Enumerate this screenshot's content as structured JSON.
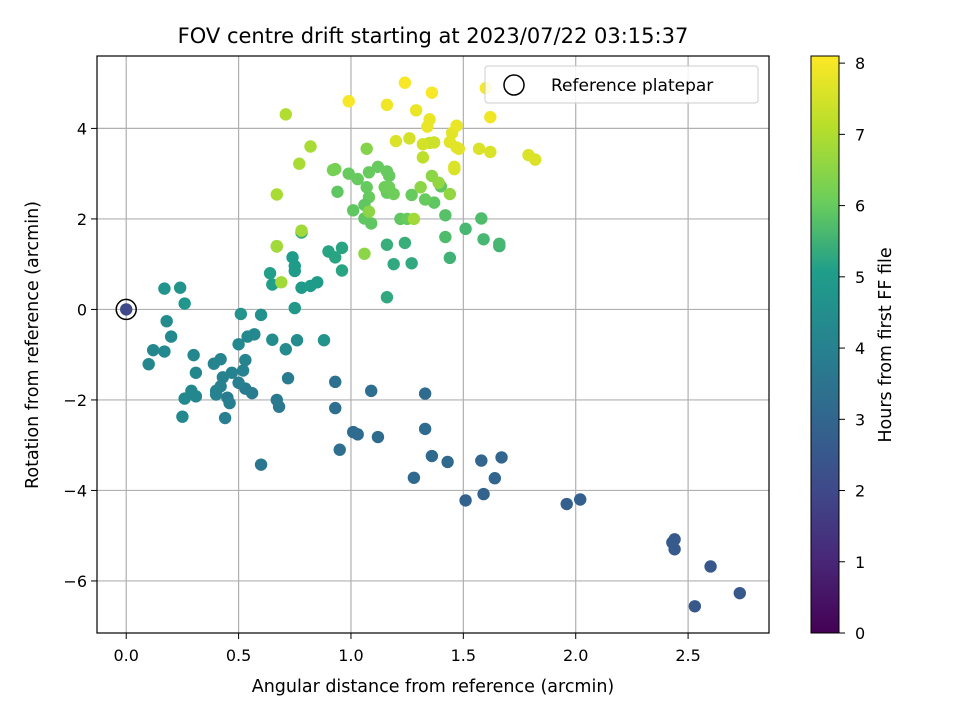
{
  "chart_data": {
    "type": "scatter",
    "title": "FOV centre drift starting at 2023/07/22 03:15:37",
    "xlabel": "Angular distance from reference (arcmin)",
    "ylabel": "Rotation from reference (arcmin)",
    "xlim": [
      -0.13,
      2.86
    ],
    "ylim": [
      -7.15,
      5.6
    ],
    "xticks": [
      0.0,
      0.5,
      1.0,
      1.5,
      2.0,
      2.5
    ],
    "xtick_labels": [
      "0.0",
      "0.5",
      "1.0",
      "1.5",
      "2.0",
      "2.5"
    ],
    "yticks": [
      4,
      2,
      0,
      -2,
      -4,
      -6
    ],
    "ytick_labels": [
      "4",
      "2",
      "0",
      "−2",
      "−4",
      "−6"
    ],
    "grid": true,
    "colormap": "viridis",
    "colorbar": {
      "label": "Hours from first FF file",
      "range": [
        0,
        8.1
      ],
      "ticks": [
        0,
        1,
        2,
        3,
        4,
        5,
        6,
        7,
        8
      ],
      "tick_labels": [
        "0",
        "1",
        "2",
        "3",
        "4",
        "5",
        "6",
        "7",
        "8"
      ]
    },
    "legend": {
      "position": "top-right",
      "entries": [
        {
          "label": "Reference platepar",
          "marker": "open-circle",
          "color": "#000000"
        }
      ]
    },
    "reference_point": {
      "x": 0.0,
      "y": 0.0
    },
    "points": [
      [
        2.73,
        -6.27,
        2.5
      ],
      [
        2.53,
        -6.56,
        2.5
      ],
      [
        2.6,
        -5.68,
        2.5
      ],
      [
        2.44,
        -5.3,
        2.6
      ],
      [
        2.43,
        -5.15,
        2.6
      ],
      [
        2.44,
        -5.08,
        2.6
      ],
      [
        1.96,
        -4.3,
        2.8
      ],
      [
        2.02,
        -4.2,
        2.8
      ],
      [
        1.51,
        -4.22,
        2.9
      ],
      [
        1.59,
        -4.08,
        2.9
      ],
      [
        1.64,
        -3.73,
        3.0
      ],
      [
        1.67,
        -3.27,
        3.0
      ],
      [
        1.58,
        -3.34,
        3.0
      ],
      [
        1.43,
        -3.37,
        3.1
      ],
      [
        1.36,
        -3.24,
        3.1
      ],
      [
        1.28,
        -3.72,
        3.1
      ],
      [
        1.33,
        -2.64,
        3.2
      ],
      [
        1.33,
        -1.86,
        3.2
      ],
      [
        1.12,
        -2.82,
        3.2
      ],
      [
        1.03,
        -2.76,
        3.2
      ],
      [
        1.01,
        -2.71,
        3.2
      ],
      [
        0.95,
        -3.1,
        3.3
      ],
      [
        0.93,
        -2.18,
        3.3
      ],
      [
        1.09,
        -1.8,
        3.3
      ],
      [
        0.93,
        -1.6,
        3.4
      ],
      [
        0.6,
        -3.43,
        3.6
      ],
      [
        0.68,
        -2.15,
        3.7
      ],
      [
        0.67,
        -2.0,
        3.7
      ],
      [
        0.72,
        -1.52,
        3.8
      ],
      [
        0.56,
        -1.85,
        3.8
      ],
      [
        0.53,
        -1.75,
        3.8
      ],
      [
        0.45,
        -1.95,
        3.8
      ],
      [
        0.46,
        -2.07,
        3.9
      ],
      [
        0.44,
        -2.4,
        3.9
      ],
      [
        0.5,
        -1.62,
        3.9
      ],
      [
        0.47,
        -1.4,
        4.0
      ],
      [
        0.52,
        -1.35,
        4.0
      ],
      [
        0.43,
        -1.5,
        4.0
      ],
      [
        0.4,
        -1.8,
        4.0
      ],
      [
        0.4,
        -1.88,
        4.0
      ],
      [
        0.42,
        -1.7,
        4.0
      ],
      [
        0.53,
        -1.12,
        4.1
      ],
      [
        0.42,
        -1.1,
        4.1
      ],
      [
        0.39,
        -1.2,
        4.1
      ],
      [
        0.31,
        -1.4,
        4.2
      ],
      [
        0.3,
        -1.01,
        4.2
      ],
      [
        0.29,
        -1.8,
        4.2
      ],
      [
        0.31,
        -1.92,
        4.2
      ],
      [
        0.26,
        -1.97,
        4.3
      ],
      [
        0.25,
        -2.37,
        4.3
      ],
      [
        0.1,
        -1.21,
        4.2
      ],
      [
        0.12,
        -0.9,
        4.2
      ],
      [
        0.17,
        -0.93,
        4.3
      ],
      [
        0.2,
        -0.6,
        4.3
      ],
      [
        0.18,
        -0.26,
        4.4
      ],
      [
        0.5,
        -0.77,
        4.3
      ],
      [
        0.54,
        -0.6,
        4.3
      ],
      [
        0.57,
        -0.55,
        4.3
      ],
      [
        0.65,
        -0.67,
        4.4
      ],
      [
        0.71,
        -0.88,
        4.4
      ],
      [
        0.76,
        -0.68,
        4.4
      ],
      [
        0.88,
        -0.68,
        4.7
      ],
      [
        0.6,
        -0.12,
        4.6
      ],
      [
        0.51,
        -0.1,
        4.7
      ],
      [
        0.17,
        0.46,
        4.7
      ],
      [
        0.24,
        0.48,
        4.7
      ],
      [
        0.26,
        0.13,
        4.8
      ],
      [
        0.75,
        0.03,
        4.9
      ],
      [
        0.78,
        0.48,
        5.0
      ],
      [
        0.82,
        0.52,
        5.0
      ],
      [
        0.85,
        0.6,
        5.0
      ],
      [
        0.75,
        0.85,
        5.0
      ],
      [
        0.75,
        0.96,
        5.0
      ],
      [
        0.74,
        1.15,
        5.0
      ],
      [
        0.65,
        0.55,
        5.1
      ],
      [
        0.64,
        0.8,
        5.1
      ],
      [
        0.96,
        0.86,
        5.2
      ],
      [
        0.9,
        1.28,
        5.2
      ],
      [
        0.96,
        1.36,
        5.2
      ],
      [
        0.93,
        1.15,
        5.2
      ],
      [
        0.78,
        1.7,
        5.3
      ],
      [
        1.16,
        0.27,
        5.3
      ],
      [
        1.19,
        1.0,
        5.3
      ],
      [
        1.27,
        1.02,
        5.3
      ],
      [
        1.16,
        1.43,
        5.4
      ],
      [
        1.24,
        1.47,
        5.4
      ],
      [
        1.44,
        1.14,
        5.5
      ],
      [
        1.51,
        1.78,
        5.6
      ],
      [
        1.59,
        1.55,
        5.6
      ],
      [
        1.66,
        1.4,
        5.5
      ],
      [
        1.66,
        1.45,
        5.6
      ],
      [
        1.58,
        2.01,
        5.7
      ],
      [
        1.42,
        1.6,
        5.7
      ],
      [
        1.42,
        2.08,
        5.8
      ],
      [
        1.37,
        2.36,
        5.9
      ],
      [
        1.4,
        2.72,
        5.9
      ],
      [
        1.33,
        2.43,
        6.0
      ],
      [
        1.27,
        2.53,
        6.0
      ],
      [
        1.22,
        2.0,
        5.9
      ],
      [
        1.25,
        2.0,
        6.0
      ],
      [
        1.16,
        2.58,
        6.0
      ],
      [
        1.08,
        2.48,
        6.0
      ],
      [
        1.09,
        1.9,
        5.9
      ],
      [
        1.06,
        2.01,
        5.9
      ],
      [
        1.06,
        2.31,
        5.9
      ],
      [
        1.01,
        2.19,
        5.9
      ],
      [
        0.94,
        2.6,
        5.9
      ],
      [
        0.99,
        3.0,
        6.0
      ],
      [
        1.03,
        2.88,
        6.0
      ],
      [
        1.07,
        2.7,
        6.0
      ],
      [
        1.08,
        3.03,
        6.0
      ],
      [
        1.12,
        3.15,
        6.0
      ],
      [
        1.16,
        3.05,
        6.0
      ],
      [
        1.17,
        2.95,
        6.0
      ],
      [
        1.17,
        2.7,
        6.1
      ],
      [
        1.15,
        2.7,
        6.1
      ],
      [
        1.19,
        2.55,
        6.1
      ],
      [
        1.08,
        2.16,
        6.5
      ],
      [
        1.06,
        1.23,
        6.5
      ],
      [
        0.93,
        3.1,
        6.2
      ],
      [
        0.92,
        3.08,
        6.2
      ],
      [
        1.07,
        3.55,
        6.4
      ],
      [
        1.31,
        2.7,
        6.5
      ],
      [
        1.36,
        2.95,
        6.5
      ],
      [
        1.39,
        2.8,
        6.6
      ],
      [
        1.44,
        2.55,
        6.6
      ],
      [
        1.28,
        2.0,
        6.8
      ],
      [
        0.78,
        1.74,
        6.8
      ],
      [
        0.67,
        1.39,
        6.8
      ],
      [
        0.67,
        1.4,
        6.8
      ],
      [
        0.69,
        0.6,
        6.8
      ],
      [
        0.82,
        3.6,
        6.9
      ],
      [
        0.77,
        3.22,
        6.9
      ],
      [
        0.67,
        2.54,
        6.9
      ],
      [
        0.71,
        4.31,
        7.0
      ],
      [
        1.32,
        3.36,
        7.2
      ],
      [
        1.35,
        3.68,
        7.3
      ],
      [
        1.37,
        3.69,
        7.4
      ],
      [
        1.32,
        3.65,
        7.5
      ],
      [
        1.26,
        3.78,
        7.5
      ],
      [
        1.2,
        3.72,
        7.6
      ],
      [
        1.46,
        3.15,
        7.6
      ],
      [
        1.46,
        3.1,
        7.6
      ],
      [
        1.57,
        3.55,
        7.6
      ],
      [
        1.62,
        3.48,
        7.6
      ],
      [
        1.79,
        3.41,
        7.6
      ],
      [
        1.82,
        3.31,
        7.6
      ],
      [
        1.48,
        3.55,
        7.7
      ],
      [
        1.47,
        3.58,
        7.7
      ],
      [
        1.44,
        3.7,
        7.7
      ],
      [
        1.45,
        3.9,
        7.7
      ],
      [
        1.47,
        4.06,
        7.8
      ],
      [
        1.34,
        4.04,
        7.8
      ],
      [
        1.35,
        4.2,
        7.8
      ],
      [
        1.29,
        4.4,
        7.8
      ],
      [
        1.62,
        4.25,
        7.9
      ],
      [
        1.16,
        4.52,
        7.9
      ],
      [
        1.36,
        4.79,
        8.0
      ],
      [
        1.24,
        5.01,
        8.0
      ],
      [
        0.99,
        4.6,
        8.0
      ],
      [
        1.6,
        4.89,
        8.0
      ]
    ]
  }
}
